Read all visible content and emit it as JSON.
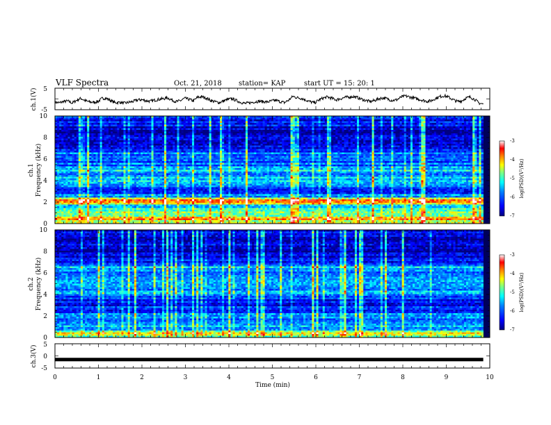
{
  "header": {
    "title": "VLF Spectra",
    "date": "Oct. 21, 2018",
    "station": "station= KAP",
    "start": "start  UT =   15: 20: 1"
  },
  "chart_data": [
    {
      "type": "line",
      "id": "ch1-voltage",
      "ylabel": "ch.1(V)",
      "ylim": [
        -5,
        5
      ],
      "yticks": [
        "5",
        "-5"
      ],
      "xlim": [
        0,
        10
      ],
      "x_end": 9.85,
      "series": [
        {
          "values": [
            -1.5,
            -1.8,
            -1.2,
            -1.0,
            -1.9,
            -0.6,
            0.3,
            -0.8,
            -1.4,
            -1.6,
            -1.1,
            0.4,
            0.2,
            -0.9,
            -1.8,
            -1.5,
            -2.0,
            -1.6,
            -1.2,
            -0.5,
            -0.3,
            -0.8,
            -1.1,
            -0.6,
            -0.2,
            0.1,
            0.5,
            -0.4,
            -1.3,
            -0.8,
            0.3,
            -0.2,
            -0.9,
            0.8,
            1.0,
            0.4,
            -0.7,
            -1.3,
            -1.7,
            -0.9,
            -0.2,
            0.1,
            -0.8,
            -1.6,
            -2.1,
            -1.8,
            -1.4,
            -1.1,
            -1.2,
            -1.4,
            -1.0,
            -0.6,
            -1.2,
            -1.7,
            -0.6,
            1.2,
            0.6,
            0.3,
            -0.5,
            -1.3,
            -1.8,
            -0.5,
            0.4,
            0.9,
            0.3,
            -0.4,
            0.1,
            0.7,
            0.9,
            1.1,
            0.6,
            -0.2,
            -0.8,
            -1.2,
            -0.6,
            0.2,
            0.5,
            -0.1,
            -0.7,
            -0.4,
            0.8,
            1.4,
            0.9,
            0.4,
            -0.1,
            -0.6,
            -1.1,
            -0.8,
            0.3,
            1.1,
            1.5,
            0.8,
            -0.3,
            -1.2,
            -0.9,
            0.4,
            0.9,
            -0.2,
            -1.9,
            -2.4
          ]
        }
      ]
    },
    {
      "type": "heatmap",
      "id": "ch1-spectrogram",
      "ylabel": "ch.1\nFrequency (kHz)",
      "ylabel_lines": [
        "ch.1",
        "Frequency  (kHz)"
      ],
      "ylim": [
        0,
        10
      ],
      "yticks": [
        "0",
        "2",
        "4",
        "6",
        "8",
        "10"
      ],
      "xlim": [
        0,
        10
      ],
      "x_end": 9.85,
      "colorbar": {
        "label": "log(PSD)(V²/Hz)",
        "range": [
          -7,
          -3
        ],
        "ticks": [
          "-3",
          "-4",
          "-5",
          "-6",
          "-7"
        ]
      },
      "band_profile": [
        {
          "f": 0.0,
          "level": -4.4
        },
        {
          "f": 0.4,
          "level": -4.0
        },
        {
          "f": 0.8,
          "level": -4.6
        },
        {
          "f": 1.2,
          "level": -5.1
        },
        {
          "f": 1.6,
          "level": -5.3
        },
        {
          "f": 2.0,
          "level": -4.2
        },
        {
          "f": 2.2,
          "level": -3.9
        },
        {
          "f": 2.5,
          "level": -5.6
        },
        {
          "f": 2.9,
          "level": -6.2
        },
        {
          "f": 3.2,
          "level": -6.6
        },
        {
          "f": 3.6,
          "level": -5.9
        },
        {
          "f": 4.0,
          "level": -5.4
        },
        {
          "f": 4.5,
          "level": -5.6
        },
        {
          "f": 5.0,
          "level": -5.2
        },
        {
          "f": 5.5,
          "level": -5.9
        },
        {
          "f": 6.0,
          "level": -6.2
        },
        {
          "f": 6.5,
          "level": -5.8
        },
        {
          "f": 7.0,
          "level": -6.4
        },
        {
          "f": 7.5,
          "level": -6.7
        },
        {
          "f": 8.0,
          "level": -6.5
        },
        {
          "f": 8.5,
          "level": -6.8
        },
        {
          "f": 9.0,
          "level": -6.6
        },
        {
          "f": 9.5,
          "level": -6.4
        },
        {
          "f": 10.0,
          "level": -6.3
        }
      ]
    },
    {
      "type": "heatmap",
      "id": "ch2-spectrogram",
      "ylabel": "ch.2\nFrequency (kHz)",
      "ylabel_lines": [
        "ch.2",
        "Frequency  (kHz)"
      ],
      "ylim": [
        0,
        10
      ],
      "yticks": [
        "0",
        "2",
        "4",
        "6",
        "8",
        "10"
      ],
      "xlim": [
        0,
        10
      ],
      "x_end": 9.85,
      "colorbar": {
        "label": "log(PSD)(V²/Hz)",
        "range": [
          -7,
          -3
        ],
        "ticks": [
          "-3",
          "-4",
          "-5",
          "-6",
          "-7"
        ]
      },
      "band_profile": [
        {
          "f": 0.0,
          "level": -5.0
        },
        {
          "f": 0.4,
          "level": -4.5
        },
        {
          "f": 0.8,
          "level": -5.4
        },
        {
          "f": 1.2,
          "level": -5.8
        },
        {
          "f": 1.6,
          "level": -5.6
        },
        {
          "f": 2.0,
          "level": -5.9
        },
        {
          "f": 2.5,
          "level": -6.1
        },
        {
          "f": 3.0,
          "level": -6.3
        },
        {
          "f": 3.5,
          "level": -6.2
        },
        {
          "f": 4.0,
          "level": -5.6
        },
        {
          "f": 4.5,
          "level": -5.9
        },
        {
          "f": 5.0,
          "level": -6.0
        },
        {
          "f": 5.5,
          "level": -5.4
        },
        {
          "f": 6.0,
          "level": -5.8
        },
        {
          "f": 6.5,
          "level": -5.5
        },
        {
          "f": 7.0,
          "level": -6.1
        },
        {
          "f": 7.5,
          "level": -6.4
        },
        {
          "f": 8.0,
          "level": -6.7
        },
        {
          "f": 8.5,
          "level": -6.8
        },
        {
          "f": 9.0,
          "level": -6.7
        },
        {
          "f": 9.5,
          "level": -6.6
        },
        {
          "f": 10.0,
          "level": -6.5
        }
      ]
    },
    {
      "type": "line",
      "id": "ch3-voltage",
      "ylabel": "ch.3(V)",
      "ylim": [
        -5,
        5
      ],
      "yticks": [
        "5",
        "0",
        "-5"
      ],
      "xlim": [
        0,
        10
      ],
      "x_end": 9.85,
      "series": [
        {
          "values": [
            -1.5,
            -1.5
          ]
        }
      ]
    }
  ],
  "x_axis": {
    "label": "Time  (min)",
    "ticks": [
      "0",
      "1",
      "2",
      "3",
      "4",
      "5",
      "6",
      "7",
      "8",
      "9",
      "10"
    ]
  },
  "colors": {
    "colormap": [
      "#000080",
      "#0000ff",
      "#0080ff",
      "#00ffff",
      "#80ff80",
      "#ffff00",
      "#ff8000",
      "#ff0000",
      "#ffffff"
    ],
    "line": "#000000"
  }
}
